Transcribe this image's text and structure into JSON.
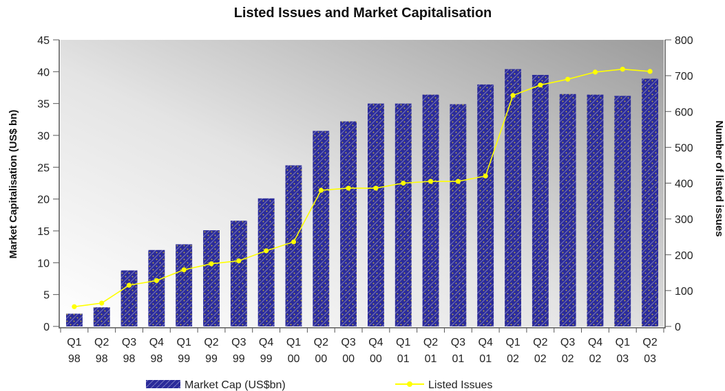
{
  "chart_data": {
    "type": "bar",
    "title": "Listed Issues and Market Capitalisation",
    "ylabel": "Market Capitalisation (US$ bn)",
    "y2label": "Number of listed issues",
    "categories": [
      [
        "Q1",
        "98"
      ],
      [
        "Q2",
        "98"
      ],
      [
        "Q3",
        "98"
      ],
      [
        "Q4",
        "98"
      ],
      [
        "Q1",
        "99"
      ],
      [
        "Q2",
        "99"
      ],
      [
        "Q3",
        "99"
      ],
      [
        "Q4",
        "99"
      ],
      [
        "Q1",
        "00"
      ],
      [
        "Q2",
        "00"
      ],
      [
        "Q3",
        "00"
      ],
      [
        "Q4",
        "00"
      ],
      [
        "Q1",
        "01"
      ],
      [
        "Q2",
        "01"
      ],
      [
        "Q3",
        "01"
      ],
      [
        "Q4",
        "01"
      ],
      [
        "Q1",
        "02"
      ],
      [
        "Q2",
        "02"
      ],
      [
        "Q3",
        "02"
      ],
      [
        "Q4",
        "02"
      ],
      [
        "Q1",
        "03"
      ],
      [
        "Q2",
        "03"
      ]
    ],
    "ylim": [
      0,
      45
    ],
    "yticks": [
      "0",
      "5",
      "10",
      "15",
      "20",
      "25",
      "30",
      "35",
      "40",
      "45"
    ],
    "y2lim": [
      0,
      800
    ],
    "y2ticks": [
      "0",
      "100",
      "200",
      "300",
      "400",
      "500",
      "600",
      "700",
      "800"
    ],
    "series": [
      {
        "name": "Market Cap (US$bn)",
        "type": "bar",
        "axis": "left",
        "color": "#2b2b9a",
        "values": [
          2,
          3,
          8.8,
          12,
          12.9,
          15.1,
          16.6,
          20.1,
          25.3,
          30.7,
          32.2,
          35,
          35,
          36.4,
          34.9,
          38,
          40.4,
          39.5,
          36.5,
          36.4,
          36.2,
          38.9
        ]
      },
      {
        "name": "Listed Issues",
        "type": "line",
        "axis": "right",
        "color": "#ffff00",
        "values": [
          55,
          65,
          115,
          128,
          158,
          175,
          183,
          211,
          236,
          380,
          386,
          386,
          400,
          405,
          405,
          420,
          645,
          674,
          690,
          710,
          718,
          712
        ]
      }
    ],
    "legend": "bottom",
    "grid": false
  }
}
